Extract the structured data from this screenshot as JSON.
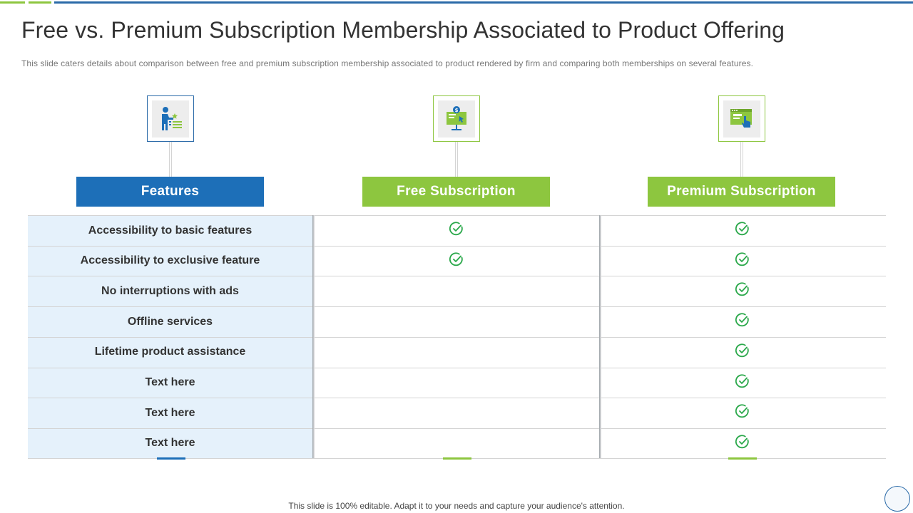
{
  "slide": {
    "title": "Free vs. Premium Subscription Membership Associated to Product Offering",
    "subtitle": "This slide caters details about comparison between free and premium subscription membership associated to product rendered by firm and comparing both memberships on several features.",
    "footer": "This slide is 100% editable. Adapt it to your needs and capture your audience's attention."
  },
  "columns": {
    "features": {
      "label": "Features",
      "icon": "presenter-icon"
    },
    "free": {
      "label": "Free Subscription",
      "icon": "monitor-dollar-icon"
    },
    "premium": {
      "label": "Premium Subscription",
      "icon": "browser-click-icon"
    }
  },
  "rows": [
    {
      "feature": "Accessibility to basic features",
      "free": true,
      "premium": true
    },
    {
      "feature": "Accessibility to exclusive feature",
      "free": true,
      "premium": true
    },
    {
      "feature": "No interruptions with ads",
      "free": false,
      "premium": true
    },
    {
      "feature": "Offline services",
      "free": false,
      "premium": true
    },
    {
      "feature": "Lifetime product assistance",
      "free": false,
      "premium": true
    },
    {
      "feature": "Text here",
      "free": false,
      "premium": true
    },
    {
      "feature": "Text here",
      "free": false,
      "premium": true
    },
    {
      "feature": "Text here",
      "free": false,
      "premium": true
    }
  ],
  "colors": {
    "blue": "#1d6fb8",
    "green": "#8dc63f",
    "feature_bg": "#e5f1fb",
    "check": "#2aa84a"
  }
}
